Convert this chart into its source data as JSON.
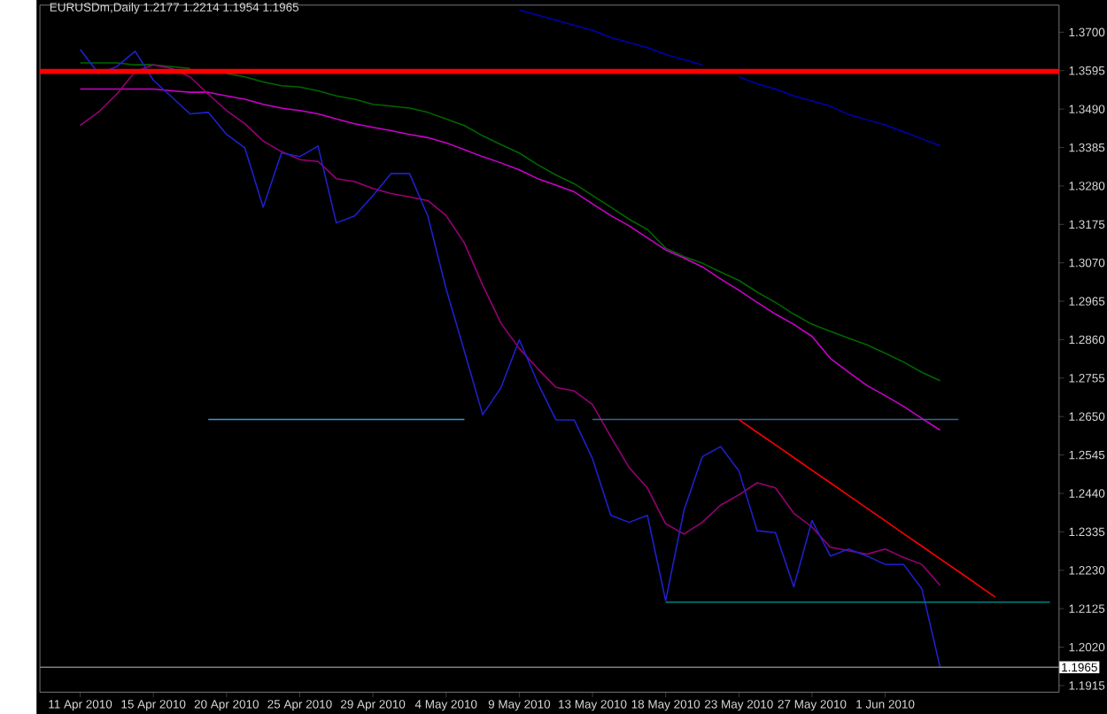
{
  "chart_data": {
    "type": "line",
    "title": "EURUSDm,Daily  1.2177 1.2214 1.1954 1.1965",
    "categories": [
      "11 Apr 2010",
      null,
      null,
      null,
      "15 Apr 2010",
      null,
      null,
      null,
      "20 Apr 2010",
      null,
      null,
      null,
      "25 Apr 2010",
      null,
      null,
      null,
      "29 Apr 2010",
      null,
      null,
      null,
      "4 May 2010",
      null,
      null,
      null,
      "9 May 2010",
      null,
      null,
      null,
      "13 May 2010",
      null,
      null,
      null,
      "18 May 2010",
      null,
      null,
      null,
      "23 May 2010",
      null,
      null,
      null,
      "27 May 2010",
      null,
      null,
      null,
      "1 Jun 2010",
      null,
      null,
      null,
      null,
      null,
      null,
      null,
      null,
      null
    ],
    "ylim": [
      1.1897,
      1.3774
    ],
    "yticks": [
      {
        "value": 1.37,
        "label": "1.3700"
      },
      {
        "value": 1.3595,
        "label": "1.3595"
      },
      {
        "value": 1.349,
        "label": "1.3490"
      },
      {
        "value": 1.3385,
        "label": "1.3385"
      },
      {
        "value": 1.328,
        "label": "1.3280"
      },
      {
        "value": 1.3175,
        "label": "1.3175"
      },
      {
        "value": 1.307,
        "label": "1.3070"
      },
      {
        "value": 1.2965,
        "label": "1.2965"
      },
      {
        "value": 1.286,
        "label": "1.2860"
      },
      {
        "value": 1.2755,
        "label": "1.2755"
      },
      {
        "value": 1.265,
        "label": "1.2650"
      },
      {
        "value": 1.2545,
        "label": "1.2545"
      },
      {
        "value": 1.244,
        "label": "1.2440"
      },
      {
        "value": 1.2335,
        "label": "1.2335"
      },
      {
        "value": 1.223,
        "label": "1.2230"
      },
      {
        "value": 1.2125,
        "label": "1.2125"
      },
      {
        "value": 1.202,
        "label": "1.2020"
      },
      {
        "value": 1.1915,
        "label": "1.1915"
      }
    ],
    "series": [
      {
        "color": "#0000b0",
        "values": [
          null,
          null,
          null,
          null,
          null,
          null,
          null,
          null,
          null,
          null,
          null,
          null,
          null,
          null,
          null,
          null,
          null,
          null,
          null,
          null,
          null,
          null,
          null,
          null,
          1.376,
          1.3747,
          1.3733,
          1.3719,
          1.3705,
          1.3686,
          1.3672,
          1.3658,
          1.3639,
          1.3625,
          1.3611,
          null,
          1.3578,
          1.3559,
          1.3545,
          1.3526,
          1.3512,
          1.3498,
          1.3475,
          1.3461,
          1.3447,
          1.3428,
          1.3409,
          1.339,
          null,
          null,
          null,
          null,
          null,
          null
        ]
      },
      {
        "color": "#006600",
        "values": [
          1.3616,
          1.3616,
          1.3616,
          1.3611,
          1.3611,
          1.3606,
          1.3601,
          null,
          1.3587,
          1.3578,
          1.3564,
          1.3554,
          1.355,
          1.354,
          1.3526,
          1.3517,
          1.3503,
          1.3498,
          1.3493,
          1.3481,
          1.3463,
          1.3445,
          1.3417,
          1.3393,
          1.337,
          1.3338,
          1.331,
          1.3286,
          1.3254,
          1.3222,
          1.3189,
          1.3161,
          1.311,
          1.3087,
          1.3069,
          1.3045,
          1.3022,
          1.299,
          1.2962,
          1.293,
          1.2902,
          1.2883,
          1.2864,
          1.2846,
          1.2823,
          1.2799,
          1.2771,
          1.2748,
          null,
          null,
          null,
          null,
          null,
          null
        ]
      },
      {
        "color": "#cc00cc",
        "values": [
          1.3545,
          1.3545,
          1.3545,
          1.3545,
          1.3545,
          1.354,
          1.3536,
          1.3536,
          1.3526,
          1.3517,
          1.3503,
          1.3493,
          1.3486,
          1.3477,
          1.3463,
          1.345,
          1.344,
          1.3431,
          1.3421,
          1.3412,
          1.3398,
          1.3379,
          1.336,
          1.3343,
          1.3324,
          1.33,
          1.3282,
          1.3264,
          1.3231,
          1.3199,
          1.3171,
          1.3138,
          1.3105,
          1.3083,
          1.3059,
          1.3026,
          1.2995,
          1.2962,
          1.293,
          1.2902,
          1.2869,
          1.2809,
          1.2771,
          1.2735,
          1.2707,
          1.2678,
          1.2645,
          1.2613,
          null,
          null,
          null,
          null,
          null,
          null
        ]
      },
      {
        "color": "#990077",
        "values": [
          1.3445,
          1.3482,
          1.3531,
          1.3592,
          1.3611,
          1.3601,
          1.3578,
          1.3531,
          1.3486,
          1.345,
          1.3403,
          1.3374,
          1.3352,
          1.3347,
          1.33,
          1.3292,
          1.3273,
          1.3259,
          1.325,
          1.324,
          1.3199,
          1.3124,
          1.3009,
          1.2905,
          1.2836,
          1.2781,
          1.273,
          1.272,
          1.2683,
          1.2595,
          1.2511,
          1.2455,
          1.2357,
          1.2329,
          1.2361,
          1.2408,
          1.2436,
          1.2469,
          1.2455,
          1.2386,
          1.2348,
          1.2293,
          1.2283,
          1.2274,
          1.2288,
          1.2265,
          1.2246,
          1.2189,
          null,
          null,
          null,
          null,
          null,
          null
        ]
      },
      {
        "color": "#2020d0",
        "values": [
          1.3653,
          1.3587,
          1.3606,
          1.3648,
          1.3569,
          1.3523,
          1.3477,
          1.3481,
          1.3421,
          1.3384,
          1.3222,
          1.337,
          1.336,
          1.3389,
          1.3179,
          1.3198,
          1.3254,
          1.3314,
          1.3314,
          1.3198,
          1.2999,
          1.2828,
          1.2655,
          1.2729,
          1.286,
          1.2743,
          1.2641,
          1.2641,
          1.2535,
          1.238,
          1.2361,
          1.238,
          1.2147,
          1.2394,
          1.254,
          1.2568,
          1.2502,
          1.2338,
          1.2333,
          1.2185,
          1.2366,
          1.2269,
          1.2288,
          1.2269,
          1.2246,
          1.2246,
          1.218,
          1.1965,
          null,
          null,
          null,
          null,
          null,
          null
        ]
      },
      {
        "color": "#3399dd",
        "values": [
          null,
          null,
          null,
          null,
          null,
          null,
          null,
          1.2642,
          1.2642,
          1.2642,
          1.2642,
          1.2642,
          1.2642,
          1.2642,
          1.2642,
          1.2642,
          1.2642,
          1.2642,
          1.2642,
          1.2642,
          1.2642,
          1.2642,
          null,
          null,
          null,
          null,
          null,
          null,
          null,
          null,
          null,
          null,
          null,
          null,
          null,
          null,
          null,
          null,
          null,
          null,
          null,
          null,
          null,
          null,
          null,
          null,
          null,
          null,
          null,
          null,
          null,
          null,
          null,
          null
        ]
      },
      {
        "color": "#336699",
        "values": [
          null,
          null,
          null,
          null,
          null,
          null,
          null,
          null,
          null,
          null,
          null,
          null,
          null,
          null,
          null,
          null,
          null,
          null,
          null,
          null,
          null,
          null,
          null,
          null,
          null,
          null,
          null,
          null,
          1.2642,
          1.2642,
          1.2642,
          1.2642,
          1.2642,
          1.2642,
          1.2642,
          1.2642,
          1.2642,
          1.2642,
          1.2642,
          1.2642,
          1.2642,
          1.2642,
          1.2642,
          1.2642,
          1.2642,
          1.2642,
          1.2642,
          1.2642,
          1.2642,
          null,
          null,
          null,
          null,
          null
        ]
      },
      {
        "color": "#008080",
        "values": [
          null,
          null,
          null,
          null,
          null,
          null,
          null,
          null,
          null,
          null,
          null,
          null,
          null,
          null,
          null,
          null,
          null,
          null,
          null,
          null,
          null,
          null,
          null,
          null,
          null,
          null,
          null,
          null,
          null,
          null,
          null,
          null,
          1.2143,
          1.2143,
          1.2143,
          1.2143,
          1.2143,
          1.2143,
          1.2143,
          1.2143,
          1.2143,
          1.2143,
          1.2143,
          1.2143,
          1.2143,
          1.2143,
          1.2143,
          1.2143,
          1.2143,
          1.2143,
          1.2143,
          1.2143,
          1.2143,
          1.2143
        ]
      },
      {
        "color": "#ff0000",
        "values": [
          null,
          null,
          null,
          null,
          null,
          null,
          null,
          null,
          null,
          null,
          null,
          null,
          null,
          null,
          null,
          null,
          null,
          null,
          null,
          null,
          null,
          null,
          null,
          null,
          null,
          null,
          null,
          null,
          null,
          null,
          null,
          null,
          null,
          null,
          null,
          null,
          1.2642,
          1.2607,
          1.2573,
          1.2538,
          1.2503,
          1.2469,
          1.2434,
          1.24,
          1.2365,
          1.233,
          1.2296,
          1.2261,
          1.2227,
          1.2192,
          1.2157,
          null,
          null,
          null
        ]
      }
    ],
    "ref_lines": [
      {
        "axis": "y",
        "value": 1.3593,
        "color": "#ff0000"
      },
      {
        "axis": "y",
        "value": 1.1965,
        "label": "1.1965",
        "color": "#808080"
      }
    ]
  }
}
